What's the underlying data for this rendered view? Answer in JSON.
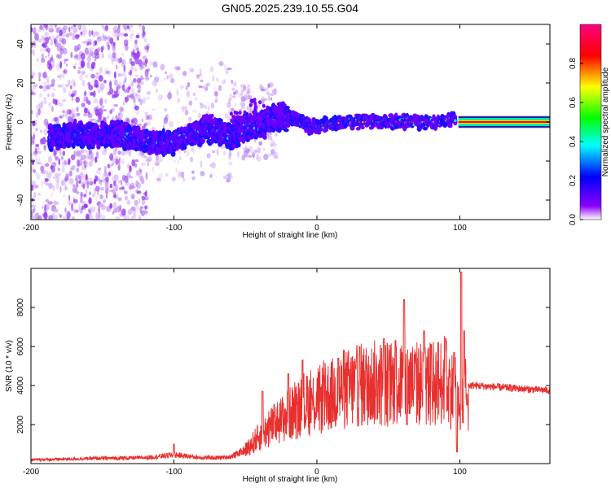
{
  "figure": {
    "title": "GN05.2025.239.10.55.G04"
  },
  "colors": {
    "background": "#ffffff",
    "snr_line": "#e8302f",
    "axis": "#000000"
  },
  "chart_data": [
    {
      "type": "heatmap",
      "xlabel": "Height of straight line (km)",
      "ylabel": "Frequency (Hz)",
      "xlim": [
        -200,
        163
      ],
      "ylim": [
        -50,
        50
      ],
      "x_ticks": [
        -200,
        -100,
        0,
        100
      ],
      "y_ticks": [
        -40,
        -20,
        0,
        20,
        40
      ],
      "colorbar": {
        "label": "Normalized spectral amplitude",
        "range": [
          0,
          1
        ],
        "ticks": [
          0.0,
          0.2,
          0.4,
          0.6,
          0.8
        ],
        "colormap": [
          "#ffffff",
          "#8a00ff",
          "#0000ff",
          "#00ffff",
          "#00ff00",
          "#ffff00",
          "#ff0000",
          "#ff0080"
        ]
      },
      "ridge": [
        {
          "x": -185,
          "f": -8
        },
        {
          "x": -170,
          "f": -6
        },
        {
          "x": -155,
          "f": -7
        },
        {
          "x": -140,
          "f": -6
        },
        {
          "x": -125,
          "f": -9
        },
        {
          "x": -110,
          "f": -11
        },
        {
          "x": -100,
          "f": -10
        },
        {
          "x": -90,
          "f": -7
        },
        {
          "x": -80,
          "f": -5
        },
        {
          "x": -70,
          "f": -4
        },
        {
          "x": -60,
          "f": -8
        },
        {
          "x": -50,
          "f": -3
        },
        {
          "x": -40,
          "f": -2
        },
        {
          "x": -30,
          "f": 2
        },
        {
          "x": -20,
          "f": 3
        },
        {
          "x": -10,
          "f": 0
        },
        {
          "x": -5,
          "f": -3
        },
        {
          "x": 0,
          "f": -2
        },
        {
          "x": 10,
          "f": -1
        },
        {
          "x": 20,
          "f": 0
        },
        {
          "x": 40,
          "f": 0
        },
        {
          "x": 60,
          "f": 0
        },
        {
          "x": 80,
          "f": 0
        },
        {
          "x": 95,
          "f": 1
        },
        {
          "x": 100,
          "f": 0
        },
        {
          "x": 163,
          "f": 0
        }
      ]
    },
    {
      "type": "line",
      "xlabel": "Height of straight line (km)",
      "ylabel": "SNR (10 * v/v)",
      "xlim": [
        -200,
        163
      ],
      "ylim": [
        0,
        10000
      ],
      "x_ticks": [
        -200,
        -100,
        0,
        100
      ],
      "y_ticks": [
        2000,
        4000,
        6000,
        8000
      ],
      "envelope": [
        {
          "x": -200,
          "y": 200
        },
        {
          "x": -180,
          "y": 220
        },
        {
          "x": -160,
          "y": 260
        },
        {
          "x": -140,
          "y": 280
        },
        {
          "x": -120,
          "y": 300
        },
        {
          "x": -100,
          "y": 450
        },
        {
          "x": -90,
          "y": 380
        },
        {
          "x": -80,
          "y": 300
        },
        {
          "x": -70,
          "y": 300
        },
        {
          "x": -60,
          "y": 350
        },
        {
          "x": -50,
          "y": 700
        },
        {
          "x": -40,
          "y": 1400
        },
        {
          "x": -30,
          "y": 2000
        },
        {
          "x": -20,
          "y": 2500
        },
        {
          "x": -10,
          "y": 2900
        },
        {
          "x": 0,
          "y": 3200
        },
        {
          "x": 10,
          "y": 3500
        },
        {
          "x": 20,
          "y": 3800
        },
        {
          "x": 30,
          "y": 4000
        },
        {
          "x": 40,
          "y": 4100
        },
        {
          "x": 50,
          "y": 4100
        },
        {
          "x": 60,
          "y": 4200
        },
        {
          "x": 70,
          "y": 4100
        },
        {
          "x": 80,
          "y": 4100
        },
        {
          "x": 90,
          "y": 4300
        },
        {
          "x": 97,
          "y": 3500
        },
        {
          "x": 100,
          "y": 2500
        },
        {
          "x": 104,
          "y": 4000
        },
        {
          "x": 110,
          "y": 4000
        },
        {
          "x": 130,
          "y": 3900
        },
        {
          "x": 150,
          "y": 3800
        },
        {
          "x": 163,
          "y": 3750
        }
      ],
      "spikes": [
        {
          "x": -100,
          "y": 1000
        },
        {
          "x": -38,
          "y": 3700
        },
        {
          "x": -20,
          "y": 4600
        },
        {
          "x": -10,
          "y": 5300
        },
        {
          "x": 15,
          "y": 5400
        },
        {
          "x": 30,
          "y": 6000
        },
        {
          "x": 47,
          "y": 6400
        },
        {
          "x": 55,
          "y": 6300
        },
        {
          "x": 61,
          "y": 8400
        },
        {
          "x": 63,
          "y": 2000
        },
        {
          "x": 75,
          "y": 6800
        },
        {
          "x": 80,
          "y": 6100
        },
        {
          "x": 90,
          "y": 6400
        },
        {
          "x": 96,
          "y": 5700
        },
        {
          "x": 98,
          "y": 600
        },
        {
          "x": 101,
          "y": 9800
        },
        {
          "x": 103,
          "y": 6800
        },
        {
          "x": 105,
          "y": 3000
        }
      ]
    }
  ]
}
